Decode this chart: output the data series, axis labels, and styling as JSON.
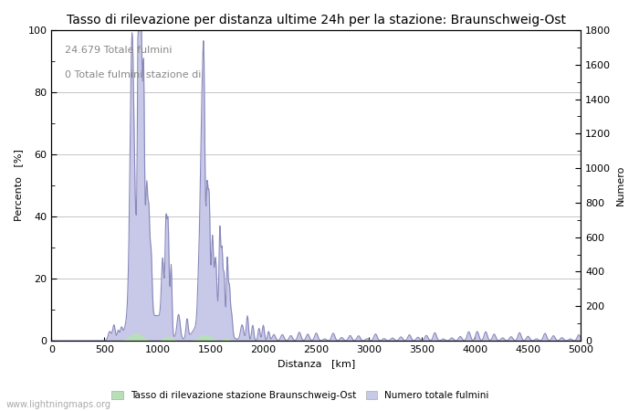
{
  "title": "Tasso di rilevazione per distanza ultime 24h per la stazione: Braunschweig-Ost",
  "xlabel": "Distanza   [km]",
  "ylabel_left": "Percento   [%]",
  "ylabel_right": "Numero",
  "annotation_line1": "24.679 Totale fulmini",
  "annotation_line2": "0 Totale fulmini stazione di",
  "watermark": "www.lightningmaps.org",
  "legend_label1": "Tasso di rilevazione stazione Braunschweig-Ost",
  "legend_label2": "Numero totale fulmini",
  "xlim": [
    0,
    5000
  ],
  "ylim_left": [
    0,
    100
  ],
  "ylim_right": [
    0,
    1800
  ],
  "yticks_left": [
    0,
    20,
    40,
    60,
    80,
    100
  ],
  "yticks_right": [
    0,
    200,
    400,
    600,
    800,
    1000,
    1200,
    1400,
    1600,
    1800
  ],
  "xticks": [
    0,
    500,
    1000,
    1500,
    2000,
    2500,
    3000,
    3500,
    4000,
    4500,
    5000
  ],
  "fill_color_blue": "#c8c8e8",
  "line_color_blue": "#8888bb",
  "fill_color_green": "#b8e0b8",
  "line_color_green": "#88bb88",
  "background_color": "#ffffff",
  "grid_color": "#bbbbbb",
  "title_fontsize": 10,
  "axis_fontsize": 8,
  "tick_fontsize": 8,
  "annot_fontsize": 8
}
